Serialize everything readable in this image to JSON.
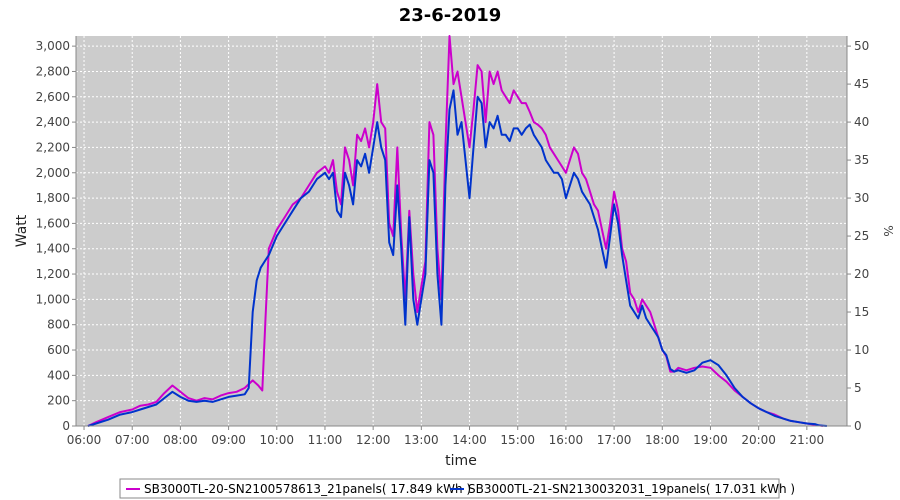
{
  "chart_data": {
    "type": "line",
    "title": "23-6-2019",
    "xlabel": "time",
    "ylabel": "Watt",
    "y2label": "%",
    "xlim": [
      "05:50",
      "21:50"
    ],
    "ylim": [
      0,
      3080
    ],
    "y2lim": [
      0,
      51.33
    ],
    "x_ticks": [
      "06:00",
      "07:00",
      "08:00",
      "09:00",
      "10:00",
      "11:00",
      "12:00",
      "13:00",
      "14:00",
      "15:00",
      "16:00",
      "17:00",
      "18:00",
      "19:00",
      "20:00",
      "21:00"
    ],
    "y_ticks": [
      "0",
      "200",
      "400",
      "600",
      "800",
      "1,000",
      "1,200",
      "1,400",
      "1,600",
      "1,800",
      "2,000",
      "2,200",
      "2,400",
      "2,600",
      "2,800",
      "3,000"
    ],
    "y2_ticks": [
      "0",
      "5",
      "10",
      "15",
      "20",
      "25",
      "30",
      "35",
      "40",
      "45",
      "50"
    ],
    "grid": true,
    "legend_position": "bottom",
    "series": [
      {
        "name": "SB3000TL-20-SN2100578613_21panels( 17.849 kWh )",
        "color": "#cc00cc",
        "points": [
          [
            "06:05",
            0
          ],
          [
            "06:15",
            30
          ],
          [
            "06:30",
            70
          ],
          [
            "06:45",
            110
          ],
          [
            "07:00",
            130
          ],
          [
            "07:10",
            160
          ],
          [
            "07:20",
            170
          ],
          [
            "07:30",
            190
          ],
          [
            "07:40",
            260
          ],
          [
            "07:50",
            320
          ],
          [
            "08:00",
            270
          ],
          [
            "08:10",
            220
          ],
          [
            "08:20",
            200
          ],
          [
            "08:30",
            220
          ],
          [
            "08:40",
            210
          ],
          [
            "08:50",
            240
          ],
          [
            "09:00",
            260
          ],
          [
            "09:10",
            270
          ],
          [
            "09:20",
            300
          ],
          [
            "09:30",
            360
          ],
          [
            "09:37",
            320
          ],
          [
            "09:42",
            280
          ],
          [
            "09:46",
            850
          ],
          [
            "09:50",
            1400
          ],
          [
            "10:00",
            1550
          ],
          [
            "10:10",
            1650
          ],
          [
            "10:20",
            1750
          ],
          [
            "10:30",
            1800
          ],
          [
            "10:40",
            1900
          ],
          [
            "10:50",
            2000
          ],
          [
            "11:00",
            2050
          ],
          [
            "11:05",
            2000
          ],
          [
            "11:10",
            2100
          ],
          [
            "11:15",
            1850
          ],
          [
            "11:20",
            1750
          ],
          [
            "11:25",
            2200
          ],
          [
            "11:30",
            2100
          ],
          [
            "11:35",
            1900
          ],
          [
            "11:40",
            2300
          ],
          [
            "11:45",
            2250
          ],
          [
            "11:50",
            2350
          ],
          [
            "11:55",
            2200
          ],
          [
            "12:00",
            2400
          ],
          [
            "12:05",
            2700
          ],
          [
            "12:10",
            2400
          ],
          [
            "12:15",
            2350
          ],
          [
            "12:20",
            1600
          ],
          [
            "12:25",
            1500
          ],
          [
            "12:30",
            2200
          ],
          [
            "12:35",
            1500
          ],
          [
            "12:40",
            1000
          ],
          [
            "12:45",
            1700
          ],
          [
            "12:50",
            1200
          ],
          [
            "12:55",
            900
          ],
          [
            "13:00",
            1100
          ],
          [
            "13:05",
            1300
          ],
          [
            "13:10",
            2400
          ],
          [
            "13:15",
            2300
          ],
          [
            "13:20",
            1400
          ],
          [
            "13:25",
            1000
          ],
          [
            "13:30",
            2200
          ],
          [
            "13:35",
            3080
          ],
          [
            "13:40",
            2700
          ],
          [
            "13:45",
            2800
          ],
          [
            "13:50",
            2600
          ],
          [
            "13:55",
            2400
          ],
          [
            "14:00",
            2200
          ],
          [
            "14:05",
            2500
          ],
          [
            "14:10",
            2850
          ],
          [
            "14:15",
            2800
          ],
          [
            "14:20",
            2400
          ],
          [
            "14:25",
            2800
          ],
          [
            "14:30",
            2700
          ],
          [
            "14:35",
            2800
          ],
          [
            "14:40",
            2650
          ],
          [
            "14:45",
            2600
          ],
          [
            "14:50",
            2550
          ],
          [
            "14:55",
            2650
          ],
          [
            "15:00",
            2600
          ],
          [
            "15:05",
            2550
          ],
          [
            "15:10",
            2550
          ],
          [
            "15:15",
            2480
          ],
          [
            "15:20",
            2400
          ],
          [
            "15:25",
            2380
          ],
          [
            "15:30",
            2350
          ],
          [
            "15:35",
            2300
          ],
          [
            "15:40",
            2200
          ],
          [
            "15:45",
            2150
          ],
          [
            "15:50",
            2100
          ],
          [
            "15:55",
            2050
          ],
          [
            "16:00",
            2000
          ],
          [
            "16:05",
            2100
          ],
          [
            "16:10",
            2200
          ],
          [
            "16:15",
            2150
          ],
          [
            "16:20",
            2000
          ],
          [
            "16:25",
            1950
          ],
          [
            "16:30",
            1850
          ],
          [
            "16:35",
            1750
          ],
          [
            "16:40",
            1700
          ],
          [
            "16:45",
            1550
          ],
          [
            "16:50",
            1400
          ],
          [
            "16:55",
            1600
          ],
          [
            "17:00",
            1850
          ],
          [
            "17:05",
            1700
          ],
          [
            "17:10",
            1400
          ],
          [
            "17:15",
            1300
          ],
          [
            "17:20",
            1050
          ],
          [
            "17:25",
            1000
          ],
          [
            "17:30",
            900
          ],
          [
            "17:35",
            1000
          ],
          [
            "17:40",
            950
          ],
          [
            "17:45",
            900
          ],
          [
            "17:50",
            800
          ],
          [
            "17:55",
            700
          ],
          [
            "18:00",
            600
          ],
          [
            "18:05",
            550
          ],
          [
            "18:10",
            430
          ],
          [
            "18:15",
            430
          ],
          [
            "18:20",
            460
          ],
          [
            "18:30",
            440
          ],
          [
            "18:40",
            460
          ],
          [
            "18:50",
            470
          ],
          [
            "19:00",
            460
          ],
          [
            "19:10",
            400
          ],
          [
            "19:20",
            350
          ],
          [
            "19:30",
            280
          ],
          [
            "19:40",
            230
          ],
          [
            "19:50",
            180
          ],
          [
            "20:00",
            140
          ],
          [
            "20:10",
            110
          ],
          [
            "20:20",
            90
          ],
          [
            "20:30",
            60
          ],
          [
            "20:40",
            40
          ],
          [
            "20:50",
            30
          ],
          [
            "21:00",
            20
          ],
          [
            "21:15",
            5
          ],
          [
            "21:20",
            0
          ]
        ]
      },
      {
        "name": "SB3000TL-21-SN2130032031_19panels( 17.031 kWh )",
        "color": "#0033cc",
        "points": [
          [
            "06:05",
            0
          ],
          [
            "06:15",
            20
          ],
          [
            "06:30",
            50
          ],
          [
            "06:45",
            90
          ],
          [
            "07:00",
            110
          ],
          [
            "07:10",
            130
          ],
          [
            "07:20",
            150
          ],
          [
            "07:30",
            170
          ],
          [
            "07:40",
            220
          ],
          [
            "07:50",
            270
          ],
          [
            "08:00",
            230
          ],
          [
            "08:10",
            200
          ],
          [
            "08:20",
            190
          ],
          [
            "08:30",
            200
          ],
          [
            "08:40",
            190
          ],
          [
            "08:50",
            210
          ],
          [
            "09:00",
            230
          ],
          [
            "09:10",
            240
          ],
          [
            "09:20",
            250
          ],
          [
            "09:25",
            300
          ],
          [
            "09:30",
            900
          ],
          [
            "09:35",
            1150
          ],
          [
            "09:40",
            1250
          ],
          [
            "09:45",
            1300
          ],
          [
            "09:50",
            1350
          ],
          [
            "10:00",
            1500
          ],
          [
            "10:10",
            1600
          ],
          [
            "10:20",
            1700
          ],
          [
            "10:30",
            1800
          ],
          [
            "10:40",
            1850
          ],
          [
            "10:50",
            1950
          ],
          [
            "11:00",
            2000
          ],
          [
            "11:05",
            1950
          ],
          [
            "11:10",
            2000
          ],
          [
            "11:15",
            1700
          ],
          [
            "11:20",
            1650
          ],
          [
            "11:25",
            2000
          ],
          [
            "11:30",
            1900
          ],
          [
            "11:35",
            1750
          ],
          [
            "11:40",
            2100
          ],
          [
            "11:45",
            2050
          ],
          [
            "11:50",
            2150
          ],
          [
            "11:55",
            2000
          ],
          [
            "12:00",
            2200
          ],
          [
            "12:05",
            2400
          ],
          [
            "12:10",
            2200
          ],
          [
            "12:15",
            2100
          ],
          [
            "12:20",
            1450
          ],
          [
            "12:25",
            1350
          ],
          [
            "12:30",
            1900
          ],
          [
            "12:35",
            1400
          ],
          [
            "12:40",
            800
          ],
          [
            "12:45",
            1650
          ],
          [
            "12:50",
            1000
          ],
          [
            "12:55",
            800
          ],
          [
            "13:00",
            1000
          ],
          [
            "13:05",
            1200
          ],
          [
            "13:10",
            2100
          ],
          [
            "13:15",
            2000
          ],
          [
            "13:20",
            1200
          ],
          [
            "13:25",
            800
          ],
          [
            "13:30",
            1900
          ],
          [
            "13:35",
            2500
          ],
          [
            "13:40",
            2650
          ],
          [
            "13:45",
            2300
          ],
          [
            "13:50",
            2400
          ],
          [
            "13:55",
            2100
          ],
          [
            "14:00",
            1800
          ],
          [
            "14:05",
            2200
          ],
          [
            "14:10",
            2600
          ],
          [
            "14:15",
            2550
          ],
          [
            "14:20",
            2200
          ],
          [
            "14:25",
            2400
          ],
          [
            "14:30",
            2350
          ],
          [
            "14:35",
            2450
          ],
          [
            "14:40",
            2300
          ],
          [
            "14:45",
            2300
          ],
          [
            "14:50",
            2250
          ],
          [
            "14:55",
            2350
          ],
          [
            "15:00",
            2350
          ],
          [
            "15:05",
            2300
          ],
          [
            "15:10",
            2350
          ],
          [
            "15:15",
            2380
          ],
          [
            "15:20",
            2300
          ],
          [
            "15:25",
            2250
          ],
          [
            "15:30",
            2200
          ],
          [
            "15:35",
            2100
          ],
          [
            "15:40",
            2050
          ],
          [
            "15:45",
            2000
          ],
          [
            "15:50",
            2000
          ],
          [
            "15:55",
            1950
          ],
          [
            "16:00",
            1800
          ],
          [
            "16:05",
            1900
          ],
          [
            "16:10",
            2000
          ],
          [
            "16:15",
            1950
          ],
          [
            "16:20",
            1850
          ],
          [
            "16:25",
            1800
          ],
          [
            "16:30",
            1750
          ],
          [
            "16:35",
            1650
          ],
          [
            "16:40",
            1550
          ],
          [
            "16:45",
            1400
          ],
          [
            "16:50",
            1250
          ],
          [
            "16:55",
            1500
          ],
          [
            "17:00",
            1750
          ],
          [
            "17:05",
            1600
          ],
          [
            "17:10",
            1350
          ],
          [
            "17:15",
            1150
          ],
          [
            "17:20",
            950
          ],
          [
            "17:25",
            900
          ],
          [
            "17:30",
            850
          ],
          [
            "17:35",
            950
          ],
          [
            "17:40",
            850
          ],
          [
            "17:45",
            800
          ],
          [
            "17:50",
            750
          ],
          [
            "17:55",
            700
          ],
          [
            "18:00",
            600
          ],
          [
            "18:05",
            560
          ],
          [
            "18:10",
            450
          ],
          [
            "18:15",
            430
          ],
          [
            "18:20",
            440
          ],
          [
            "18:30",
            420
          ],
          [
            "18:40",
            440
          ],
          [
            "18:50",
            500
          ],
          [
            "19:00",
            520
          ],
          [
            "19:10",
            480
          ],
          [
            "19:20",
            400
          ],
          [
            "19:30",
            300
          ],
          [
            "19:40",
            230
          ],
          [
            "19:50",
            180
          ],
          [
            "20:00",
            140
          ],
          [
            "20:10",
            110
          ],
          [
            "20:20",
            80
          ],
          [
            "20:30",
            60
          ],
          [
            "20:40",
            40
          ],
          [
            "20:50",
            30
          ],
          [
            "21:00",
            20
          ],
          [
            "21:10",
            15
          ],
          [
            "21:15",
            5
          ],
          [
            "21:25",
            0
          ]
        ]
      }
    ]
  }
}
